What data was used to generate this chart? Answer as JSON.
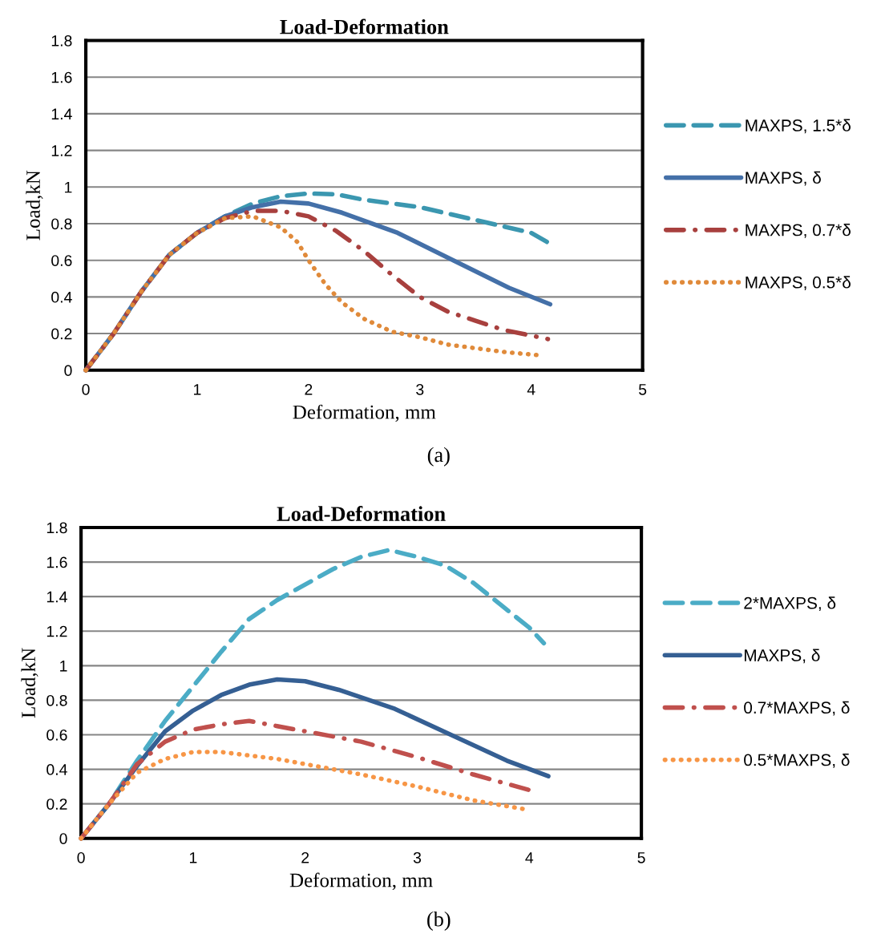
{
  "chart_data": [
    {
      "type": "line",
      "title": "Load-Deformation",
      "xlabel": "Deformation, mm",
      "ylabel": "Load,kN",
      "xlim": [
        0,
        5
      ],
      "xticks": [
        0,
        1,
        2,
        3,
        4,
        5
      ],
      "ylim": [
        0,
        1.8
      ],
      "yticks": [
        0,
        0.2,
        0.4,
        0.6,
        0.8,
        1,
        1.2,
        1.4,
        1.6,
        1.8
      ],
      "grid": "y",
      "legend": "right",
      "annotations": [
        "(a)"
      ],
      "series": [
        {
          "name": "MAXPS, 1.5*δ",
          "color": "#3b97b0",
          "line_style": "dashed",
          "x": [
            0,
            0.25,
            0.5,
            0.75,
            1,
            1.25,
            1.5,
            1.75,
            2,
            2.25,
            2.5,
            3,
            3.5,
            4,
            4.17
          ],
          "values": [
            0,
            0.2,
            0.43,
            0.63,
            0.75,
            0.84,
            0.91,
            0.95,
            0.965,
            0.96,
            0.93,
            0.89,
            0.82,
            0.75,
            0.69
          ]
        },
        {
          "name": "MAXPS, δ",
          "color": "#4470a8",
          "line_style": "solid",
          "x": [
            0,
            0.25,
            0.5,
            0.75,
            1,
            1.25,
            1.5,
            1.75,
            2,
            2.3,
            2.8,
            3.3,
            3.8,
            4.17
          ],
          "values": [
            0,
            0.2,
            0.43,
            0.63,
            0.75,
            0.84,
            0.89,
            0.92,
            0.91,
            0.86,
            0.75,
            0.6,
            0.45,
            0.36
          ]
        },
        {
          "name": "MAXPS, 0.7*δ",
          "color": "#a8403e",
          "line_style": "dashdot",
          "x": [
            0,
            0.25,
            0.5,
            0.75,
            1,
            1.25,
            1.5,
            1.75,
            2,
            2.25,
            2.5,
            2.75,
            3,
            3.25,
            3.5,
            3.75,
            4.15
          ],
          "values": [
            0,
            0.2,
            0.43,
            0.63,
            0.75,
            0.83,
            0.87,
            0.87,
            0.84,
            0.76,
            0.65,
            0.52,
            0.4,
            0.32,
            0.27,
            0.22,
            0.17
          ]
        },
        {
          "name": "MAXPS, 0.5*δ",
          "color": "#e08a3a",
          "line_style": "dotted",
          "x": [
            0,
            0.25,
            0.5,
            0.75,
            1,
            1.25,
            1.5,
            1.75,
            1.9,
            2,
            2.15,
            2.3,
            2.5,
            2.75,
            3,
            3.25,
            3.5,
            3.75,
            4.1
          ],
          "values": [
            0,
            0.2,
            0.43,
            0.63,
            0.75,
            0.83,
            0.84,
            0.78,
            0.7,
            0.6,
            0.47,
            0.37,
            0.28,
            0.21,
            0.18,
            0.14,
            0.12,
            0.1,
            0.08
          ]
        }
      ]
    },
    {
      "type": "line",
      "title": "Load-Deformation",
      "xlabel": "Deformation, mm",
      "ylabel": "Load,kN",
      "xlim": [
        0,
        5
      ],
      "xticks": [
        0,
        1,
        2,
        3,
        4,
        5
      ],
      "ylim": [
        0,
        1.8
      ],
      "yticks": [
        0,
        0.2,
        0.4,
        0.6,
        0.8,
        1,
        1.2,
        1.4,
        1.6,
        1.8
      ],
      "grid": "y",
      "legend": "right",
      "annotations": [
        "(b)"
      ],
      "series": [
        {
          "name": "2*MAXPS, δ",
          "color": "#4bacc6",
          "line_style": "dashed",
          "x": [
            0,
            0.25,
            0.5,
            0.75,
            1,
            1.25,
            1.5,
            1.75,
            2,
            2.25,
            2.5,
            2.75,
            3,
            3.25,
            3.5,
            3.75,
            4,
            4.13
          ],
          "values": [
            0,
            0.2,
            0.45,
            0.68,
            0.88,
            1.08,
            1.27,
            1.38,
            1.47,
            1.56,
            1.63,
            1.67,
            1.63,
            1.58,
            1.48,
            1.35,
            1.22,
            1.13
          ]
        },
        {
          "name": "MAXPS, δ",
          "color": "#355f93",
          "line_style": "solid",
          "x": [
            0,
            0.25,
            0.5,
            0.75,
            1,
            1.25,
            1.5,
            1.75,
            2,
            2.3,
            2.8,
            3.3,
            3.8,
            4.17
          ],
          "values": [
            0,
            0.2,
            0.42,
            0.62,
            0.74,
            0.83,
            0.89,
            0.92,
            0.91,
            0.86,
            0.75,
            0.6,
            0.45,
            0.36
          ]
        },
        {
          "name": "0.7*MAXPS, δ",
          "color": "#c0504d",
          "line_style": "dashdot",
          "x": [
            0,
            0.25,
            0.5,
            0.75,
            1,
            1.25,
            1.5,
            1.75,
            2,
            2.5,
            3,
            3.5,
            4
          ],
          "values": [
            0,
            0.2,
            0.43,
            0.56,
            0.63,
            0.66,
            0.68,
            0.65,
            0.62,
            0.56,
            0.47,
            0.37,
            0.28
          ]
        },
        {
          "name": "0.5*MAXPS, δ",
          "color": "#f79646",
          "line_style": "dotted",
          "x": [
            0,
            0.25,
            0.5,
            0.75,
            1,
            1.25,
            1.5,
            1.75,
            2,
            2.5,
            3,
            3.5,
            3.95
          ],
          "values": [
            0,
            0.2,
            0.38,
            0.46,
            0.5,
            0.5,
            0.48,
            0.46,
            0.43,
            0.37,
            0.3,
            0.22,
            0.17
          ]
        }
      ]
    }
  ]
}
